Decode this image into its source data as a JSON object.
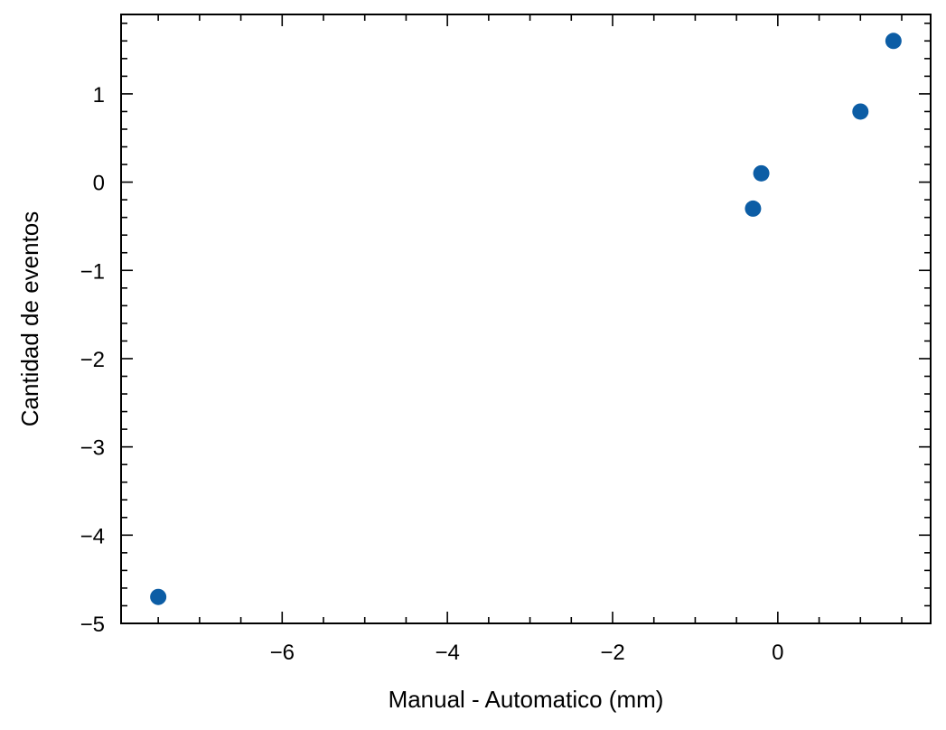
{
  "chart_data": {
    "type": "scatter",
    "title": "",
    "xlabel": "Manual - Automatico (mm)",
    "ylabel": "Cantidad de eventos",
    "xlim": [
      -7.95,
      1.85
    ],
    "ylim": [
      -5.0,
      1.9
    ],
    "xticks": [
      -6,
      -4,
      -2,
      0
    ],
    "xtick_labels": [
      "−6",
      "−4",
      "−2",
      "0"
    ],
    "yticks": [
      -5,
      -4,
      -3,
      -2,
      -1,
      0,
      1
    ],
    "ytick_labels": [
      "−5",
      "−4",
      "−3",
      "−2",
      "−1",
      "0",
      "1"
    ],
    "grid": false,
    "series": [
      {
        "color": "#0C5DA5",
        "points": [
          {
            "x": -7.5,
            "y": -4.7
          },
          {
            "x": -0.3,
            "y": -0.3
          },
          {
            "x": -0.2,
            "y": 0.1
          },
          {
            "x": 1.0,
            "y": 0.8
          },
          {
            "x": 1.4,
            "y": 1.6
          }
        ]
      }
    ]
  }
}
